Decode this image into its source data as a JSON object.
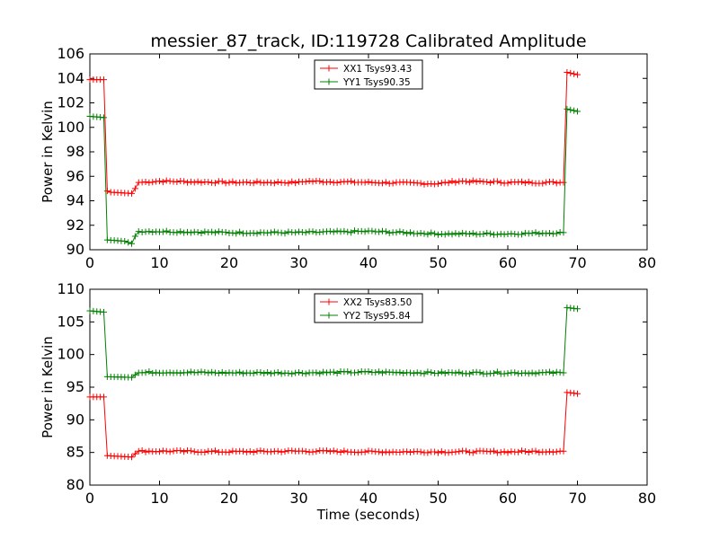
{
  "figure": {
    "title": "messier_87_track, ID:119728 Calibrated Amplitude",
    "xlabel": "Time (seconds)"
  },
  "colors": {
    "xx": "#ff0000",
    "yy": "#008000",
    "axes": "#000000",
    "background": "#ffffff"
  },
  "chart_data": [
    {
      "type": "line",
      "title": "messier_87_track, ID:119728 Calibrated Amplitude",
      "xlabel": "",
      "ylabel": "Power in Kelvin",
      "xlim": [
        0,
        80
      ],
      "ylim": [
        90,
        106
      ],
      "xticks": [
        "0",
        "10",
        "20",
        "30",
        "40",
        "50",
        "60",
        "70",
        "80"
      ],
      "yticks": [
        "90",
        "92",
        "94",
        "96",
        "98",
        "100",
        "102",
        "104",
        "106"
      ],
      "grid": false,
      "marker": "+",
      "legend_position": "top-center",
      "series": [
        {
          "name": "XX1 Tsys93.43",
          "color": "#ff0000",
          "points": [
            [
              0,
              103.9
            ],
            [
              2,
              103.9
            ],
            [
              2.5,
              94.8
            ],
            [
              3,
              94.7
            ],
            [
              6,
              94.6
            ],
            [
              6.5,
              95.0
            ],
            [
              7,
              95.5
            ],
            [
              10,
              95.6
            ],
            [
              20,
              95.5
            ],
            [
              30,
              95.5
            ],
            [
              31,
              95.6
            ],
            [
              40,
              95.5
            ],
            [
              50,
              95.4
            ],
            [
              53,
              95.6
            ],
            [
              60,
              95.5
            ],
            [
              68,
              95.5
            ],
            [
              68.5,
              104.5
            ],
            [
              70,
              104.3
            ]
          ]
        },
        {
          "name": "YY1 Tsys90.35",
          "color": "#008000",
          "points": [
            [
              0,
              100.9
            ],
            [
              2,
              100.8
            ],
            [
              2.5,
              90.8
            ],
            [
              5,
              90.7
            ],
            [
              6,
              90.5
            ],
            [
              6.5,
              91.1
            ],
            [
              7,
              91.5
            ],
            [
              10,
              91.5
            ],
            [
              20,
              91.4
            ],
            [
              30,
              91.4
            ],
            [
              40,
              91.5
            ],
            [
              50,
              91.3
            ],
            [
              60,
              91.3
            ],
            [
              68,
              91.4
            ],
            [
              68.5,
              101.5
            ],
            [
              70,
              101.3
            ]
          ]
        }
      ]
    },
    {
      "type": "line",
      "title": "",
      "xlabel": "Time (seconds)",
      "ylabel": "Power in Kelvin",
      "xlim": [
        0,
        80
      ],
      "ylim": [
        80,
        110
      ],
      "xticks": [
        "0",
        "10",
        "20",
        "30",
        "40",
        "50",
        "60",
        "70",
        "80"
      ],
      "yticks": [
        "80",
        "85",
        "90",
        "95",
        "100",
        "105",
        "110"
      ],
      "grid": false,
      "marker": "+",
      "legend_position": "top-center",
      "series": [
        {
          "name": "XX2 Tsys83.50",
          "color": "#ff0000",
          "points": [
            [
              0,
              93.5
            ],
            [
              2,
              93.5
            ],
            [
              2.5,
              84.5
            ],
            [
              6,
              84.3
            ],
            [
              6.5,
              84.8
            ],
            [
              7,
              85.2
            ],
            [
              10,
              85.2
            ],
            [
              20,
              85.1
            ],
            [
              30,
              85.2
            ],
            [
              40,
              85.1
            ],
            [
              50,
              85.1
            ],
            [
              60,
              85.1
            ],
            [
              68,
              85.2
            ],
            [
              68.5,
              94.2
            ],
            [
              70,
              94.0
            ]
          ]
        },
        {
          "name": "YY2 Tsys95.84",
          "color": "#008000",
          "points": [
            [
              0,
              106.7
            ],
            [
              2,
              106.5
            ],
            [
              2.5,
              96.6
            ],
            [
              6,
              96.5
            ],
            [
              6.5,
              96.9
            ],
            [
              7,
              97.2
            ],
            [
              10,
              97.3
            ],
            [
              20,
              97.2
            ],
            [
              30,
              97.2
            ],
            [
              40,
              97.3
            ],
            [
              50,
              97.2
            ],
            [
              60,
              97.2
            ],
            [
              68,
              97.2
            ],
            [
              68.5,
              107.2
            ],
            [
              70,
              107.0
            ]
          ]
        }
      ]
    }
  ]
}
